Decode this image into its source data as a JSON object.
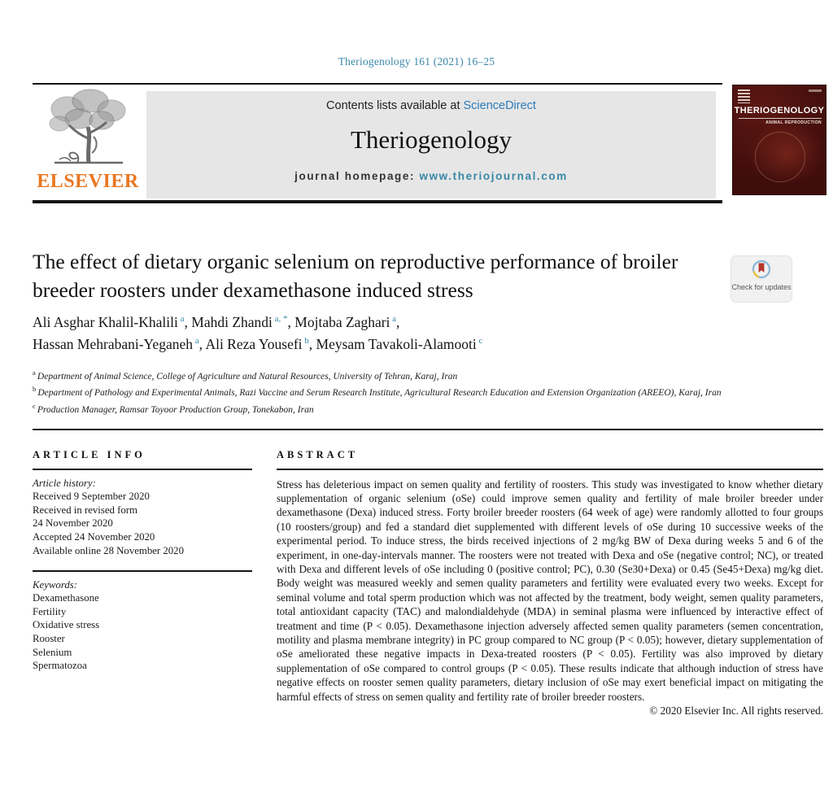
{
  "page": {
    "citation": "Theriogenology 161 (2021) 16–25"
  },
  "header": {
    "contents_text": "Contents lists available at",
    "sciencedirect": "ScienceDirect",
    "journal_name": "Theriogenology",
    "homepage_label": "journal homepage:",
    "homepage_url": "www.theriojournal.com",
    "elsevier_label": "ELSEVIER",
    "cover": {
      "title": "THERIOGENOLOGY",
      "subtitle": "ANIMAL REPRODUCTION"
    }
  },
  "article": {
    "title": "The effect of dietary organic selenium on reproductive performance of broiler breeder roosters under dexamethasone induced stress",
    "check_badge": "Check for updates",
    "author_lines": [
      [
        {
          "name": "Ali Asghar Khalil-Khalili",
          "sup": "a",
          "sep": ", "
        },
        {
          "name": "Mahdi Zhandi",
          "sup": "a, *",
          "sep": ", "
        },
        {
          "name": "Mojtaba Zaghari",
          "sup": "a",
          "sep": ","
        }
      ],
      [
        {
          "name": "Hassan Mehrabani-Yeganeh",
          "sup": "a",
          "sep": ", "
        },
        {
          "name": "Ali Reza Yousefi",
          "sup": "b",
          "sep": ", "
        },
        {
          "name": "Meysam Tavakoli-Alamooti",
          "sup": "c",
          "sep": ""
        }
      ]
    ],
    "affiliations": [
      {
        "sup": "a",
        "text": "Department of Animal Science, College of Agriculture and Natural Resources, University of Tehran, Karaj, Iran"
      },
      {
        "sup": "b",
        "text": "Department of Pathology and Experimental Animals, Razi Vaccine and Serum Research Institute, Agricultural Research Education and Extension Organization (AREEO), Karaj, Iran"
      },
      {
        "sup": "c",
        "text": "Production Manager, Ramsar Toyoor Production Group, Tonekabon, Iran"
      }
    ]
  },
  "article_info": {
    "heading": "ARTICLE INFO",
    "history_label": "Article history:",
    "history": [
      "Received 9 September 2020",
      "Received in revised form",
      "24 November 2020",
      "Accepted 24 November 2020",
      "Available online 28 November 2020"
    ],
    "keywords_label": "Keywords:",
    "keywords": [
      "Dexamethasone",
      "Fertility",
      "Oxidative stress",
      "Rooster",
      "Selenium",
      "Spermatozoa"
    ]
  },
  "abstract": {
    "heading": "ABSTRACT",
    "text": "Stress has deleterious impact on semen quality and fertility of roosters. This study was investigated to know whether dietary supplementation of organic selenium (oSe) could improve semen quality and fertility of male broiler breeder under dexamethasone (Dexa) induced stress. Forty broiler breeder roosters (64 week of age) were randomly allotted to four groups (10 roosters/group) and fed a standard diet supplemented with different levels of oSe during 10 successive weeks of the experimental period. To induce stress, the birds received injections of 2 mg/kg BW of Dexa during weeks 5 and 6 of the experiment, in one-day-intervals manner. The roosters were not treated with Dexa and oSe (negative control; NC), or treated with Dexa and different levels of oSe including 0 (positive control; PC), 0.30 (Se30+Dexa) or 0.45 (Se45+Dexa) mg/kg diet. Body weight was measured weekly and semen quality parameters and fertility were evaluated every two weeks. Except for seminal volume and total sperm production which was not affected by the treatment, body weight, semen quality parameters, total antioxidant capacity (TAC) and malondialdehyde (MDA) in seminal plasma were influenced by interactive effect of treatment and time (P < 0.05). Dexamethasone injection adversely affected semen quality parameters (semen concentration, motility and plasma membrane integrity) in PC group compared to NC group (P < 0.05); however, dietary supplementation of oSe ameliorated these negative impacts in Dexa-treated roosters (P < 0.05). Fertility was also improved by dietary supplementation of oSe compared to control groups (P < 0.05). These results indicate that although induction of stress have negative effects on rooster semen quality parameters, dietary inclusion of oSe may exert beneficial impact on mitigating the harmful effects of stress on semen quality and fertility rate of broiler breeder roosters.",
    "copyright": "© 2020 Elsevier Inc. All rights reserved."
  },
  "colors": {
    "teal": "#3a87a8",
    "link_blue": "#2b7bb9",
    "elsevier_orange": "#e87722",
    "cover_maroon": "#4a1110",
    "banner_gray": "#e6e6e6"
  }
}
